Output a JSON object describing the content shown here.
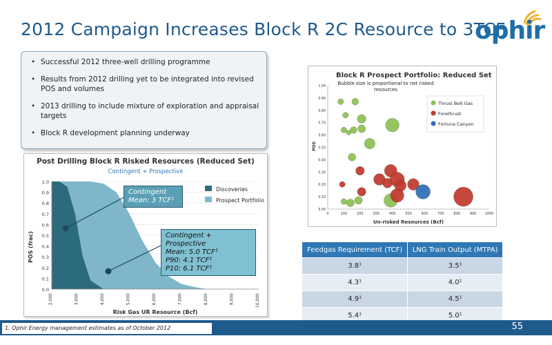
{
  "title": "2012 Campaign Increases Block R 2C Resource to 3TCF",
  "logo": {
    "text": "ophir"
  },
  "bullets": [
    "Successful 2012 three-well drilling programme",
    "Results from 2012 drilling yet to be integrated into revised POS and volumes",
    "2013 drilling to include mixture of exploration and appraisal targets",
    "Block R development planning underway"
  ],
  "left_chart": {
    "title": "Post Drilling Block R Risked Resources (Reduced Set)",
    "subtitle": "Contingent + Prospective",
    "ylabel": "POS (frac)",
    "xlabel": "Risk Gas UR Resource (Bcf)",
    "callout1": {
      "line1": "Contingent",
      "line2": "Mean: 3 TCF¹"
    },
    "callout2": {
      "line1": "Contingent + Prospective",
      "line2": "Mean: 5.0 TCF¹",
      "line3": "P90:    4.1 TCF¹",
      "line4": "P10:    6.1 TCF¹"
    },
    "legend": [
      "Discoveries",
      "Prospect Portfolio"
    ]
  },
  "chart_data": [
    {
      "type": "area",
      "title": "Post Drilling Block R Risked Resources (Reduced Set)",
      "subtitle": "Contingent + Prospective",
      "xlabel": "Risk Gas UR Resource (Bcf)",
      "ylabel": "POS (frac)",
      "xlim": [
        2000,
        10000
      ],
      "ylim": [
        0,
        1.0
      ],
      "x_ticks": [
        "2,000",
        "3,000",
        "4,000",
        "5,000",
        "6,000",
        "7,000",
        "8,000",
        "9,000",
        "10,000"
      ],
      "y_ticks": [
        "0.0",
        "0.1",
        "0.2",
        "0.3",
        "0.4",
        "0.5",
        "0.6",
        "0.7",
        "0.8",
        "0.9",
        "1.0"
      ],
      "series": [
        {
          "name": "Discoveries",
          "color": "#2b6b7b",
          "x": [
            2000,
            2300,
            2600,
            2900,
            3200,
            3500,
            4000
          ],
          "y": [
            1.0,
            1.0,
            0.95,
            0.7,
            0.3,
            0.08,
            0.0
          ]
        },
        {
          "name": "Prospect Portfolio",
          "color": "#7fb6c9",
          "x": [
            2000,
            3000,
            3500,
            4000,
            4500,
            5000,
            5500,
            6000,
            6500,
            7000,
            7500,
            8000
          ],
          "y": [
            1.0,
            1.0,
            1.0,
            0.98,
            0.9,
            0.7,
            0.45,
            0.25,
            0.12,
            0.05,
            0.02,
            0.0
          ]
        }
      ]
    },
    {
      "type": "scatter",
      "title": "Block R Prospect Portfolio: Reduced Set",
      "subtitle": "Bubble size is proportional to net risked resources",
      "xlabel": "Un-risked Resources (Bcf)",
      "ylabel": "POS",
      "xlim": [
        0,
        1000
      ],
      "ylim": [
        0,
        1.0
      ],
      "x_ticks": [
        "0",
        "100",
        "200",
        "300",
        "400",
        "500",
        "600",
        "700",
        "800",
        "900",
        "1000"
      ],
      "y_ticks": [
        "0.00",
        "0.10",
        "0.20",
        "0.30",
        "0.40",
        "0.50",
        "0.60",
        "0.70",
        "0.80",
        "0.90",
        "1.00"
      ],
      "series": [
        {
          "name": "Thrust Belt Gas",
          "color": "#8cc152",
          "points": [
            [
              80,
              0.87,
              6
            ],
            [
              170,
              0.87,
              7
            ],
            [
              110,
              0.76,
              6
            ],
            [
              210,
              0.73,
              9
            ],
            [
              100,
              0.64,
              6
            ],
            [
              130,
              0.62,
              5
            ],
            [
              160,
              0.64,
              7
            ],
            [
              210,
              0.65,
              8
            ],
            [
              260,
              0.53,
              11
            ],
            [
              150,
              0.42,
              8
            ],
            [
              400,
              0.68,
              14
            ],
            [
              100,
              0.06,
              6
            ],
            [
              140,
              0.05,
              8
            ],
            [
              190,
              0.07,
              8
            ],
            [
              390,
              0.07,
              14
            ]
          ]
        },
        {
          "name": "Forethrust",
          "color": "#c0392b",
          "points": [
            [
              200,
              0.31,
              9
            ],
            [
              90,
              0.2,
              6
            ],
            [
              210,
              0.14,
              9
            ],
            [
              320,
              0.24,
              12
            ],
            [
              370,
              0.21,
              10
            ],
            [
              390,
              0.31,
              13
            ],
            [
              430,
              0.24,
              15
            ],
            [
              450,
              0.19,
              12
            ],
            [
              430,
              0.11,
              14
            ],
            [
              530,
              0.2,
              12
            ],
            [
              840,
              0.1,
              20
            ]
          ]
        },
        {
          "name": "Fortuna Canyon",
          "color": "#2e6db5",
          "points": [
            [
              590,
              0.14,
              15
            ]
          ]
        }
      ]
    }
  ],
  "right_chart": {
    "title": "Block R Prospect Portfolio: Reduced Set",
    "subtitle_line1": "Bubble size is proportional to net risked",
    "subtitle_line2": "resources",
    "legend": [
      "Thrust Belt Gas",
      "Forethrust",
      "Fortuna Canyon"
    ]
  },
  "table": {
    "headers": [
      "Feedgas Requirement (TCF)",
      "LNG Train Output (MTPA)"
    ],
    "rows": [
      [
        "3.8¹",
        "3.5¹"
      ],
      [
        "4.3¹",
        "4.0¹"
      ],
      [
        "4.9¹",
        "4.5¹"
      ],
      [
        "5.4¹",
        "5.0¹"
      ]
    ]
  },
  "footer": {
    "note": "1. Ophir Energy management estimates as of October 2012",
    "page": "55"
  }
}
